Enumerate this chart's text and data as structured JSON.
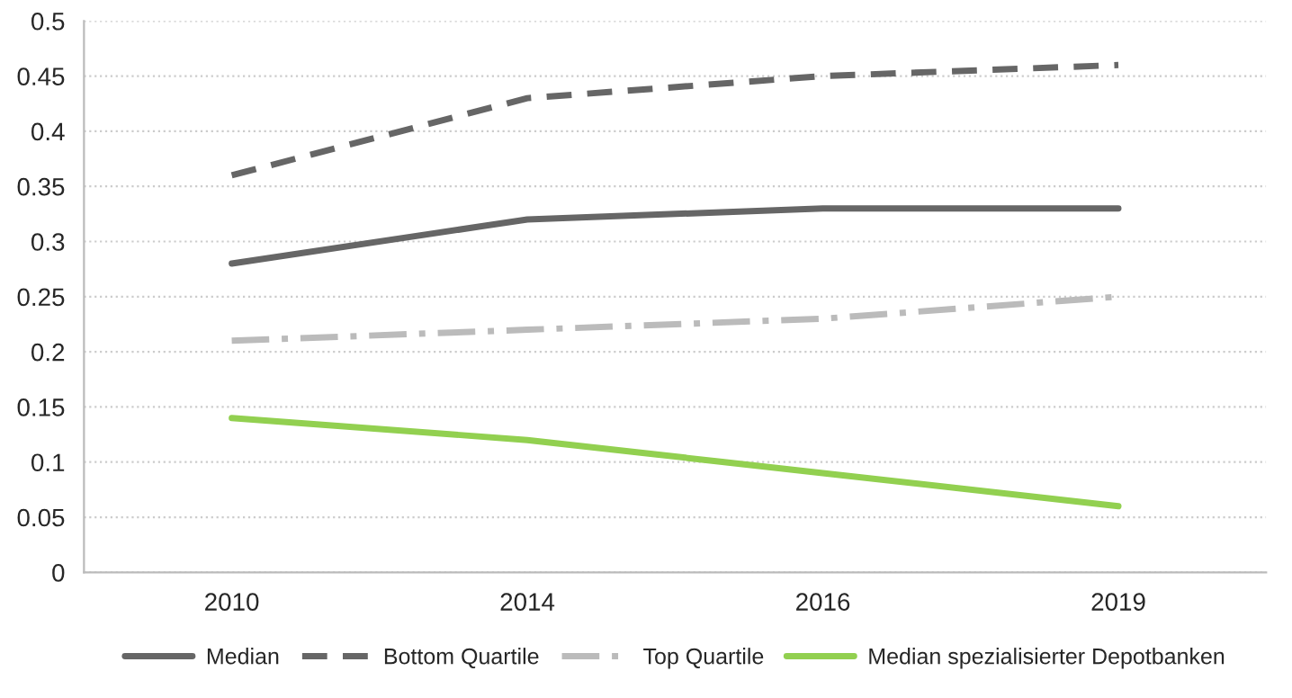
{
  "chart_data": {
    "type": "line",
    "categories": [
      "2010",
      "2014",
      "2016",
      "2019"
    ],
    "series": [
      {
        "name": "Median",
        "color": "#666666",
        "line_style": "solid",
        "values": [
          0.28,
          0.32,
          0.33,
          0.33
        ]
      },
      {
        "name": "Bottom Quartile",
        "color": "#666666",
        "line_style": "dashed",
        "values": [
          0.36,
          0.43,
          0.45,
          0.46
        ]
      },
      {
        "name": "Top Quartile",
        "color": "#bbbbbb",
        "line_style": "dashdot",
        "values": [
          0.21,
          0.22,
          0.23,
          0.25
        ]
      },
      {
        "name": "Median spezialisierter Depotbanken",
        "color": "#92d050",
        "line_style": "solid",
        "values": [
          0.14,
          0.12,
          0.09,
          0.06
        ]
      }
    ],
    "ylim": [
      0,
      0.5
    ],
    "yticks": [
      0,
      0.05,
      0.1,
      0.15,
      0.2,
      0.25,
      0.3,
      0.35,
      0.4,
      0.45,
      0.5
    ],
    "grid": "y",
    "legend": "bottom",
    "marker": "none"
  }
}
